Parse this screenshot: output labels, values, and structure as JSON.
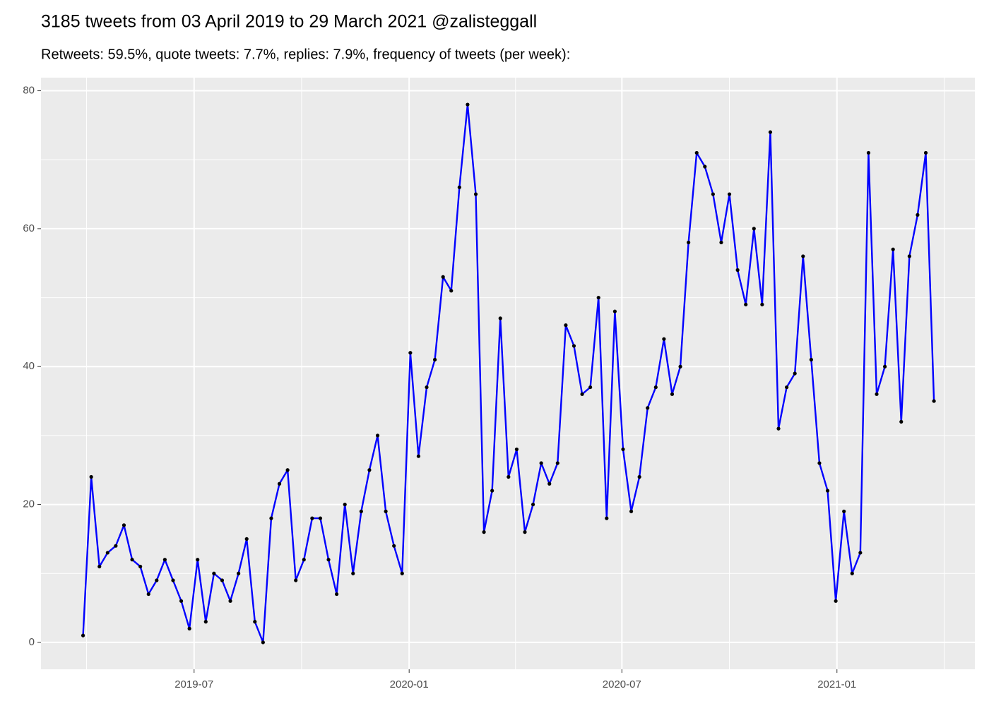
{
  "chart_data": {
    "type": "line",
    "title": "3185 tweets from 03 April 2019 to 29 March 2021 @zalisteggall",
    "subtitle": "Retweets: 59.5%, quote tweets: 7.7%, replies: 7.9%, frequency of tweets (per week):",
    "x": [
      "2019-03-28",
      "2019-04-04",
      "2019-04-11",
      "2019-04-18",
      "2019-04-25",
      "2019-05-02",
      "2019-05-09",
      "2019-05-16",
      "2019-05-23",
      "2019-05-30",
      "2019-06-06",
      "2019-06-13",
      "2019-06-20",
      "2019-06-27",
      "2019-07-04",
      "2019-07-11",
      "2019-07-18",
      "2019-07-25",
      "2019-08-01",
      "2019-08-08",
      "2019-08-15",
      "2019-08-22",
      "2019-08-29",
      "2019-09-05",
      "2019-09-12",
      "2019-09-19",
      "2019-09-26",
      "2019-10-03",
      "2019-10-10",
      "2019-10-17",
      "2019-10-24",
      "2019-10-31",
      "2019-11-07",
      "2019-11-14",
      "2019-11-21",
      "2019-11-28",
      "2019-12-05",
      "2019-12-12",
      "2019-12-19",
      "2019-12-26",
      "2020-01-02",
      "2020-01-09",
      "2020-01-16",
      "2020-01-23",
      "2020-01-30",
      "2020-02-06",
      "2020-02-13",
      "2020-02-20",
      "2020-02-27",
      "2020-03-05",
      "2020-03-12",
      "2020-03-19",
      "2020-03-26",
      "2020-04-02",
      "2020-04-09",
      "2020-04-16",
      "2020-04-23",
      "2020-04-30",
      "2020-05-07",
      "2020-05-14",
      "2020-05-21",
      "2020-05-28",
      "2020-06-04",
      "2020-06-11",
      "2020-06-18",
      "2020-06-25",
      "2020-07-02",
      "2020-07-09",
      "2020-07-16",
      "2020-07-23",
      "2020-07-30",
      "2020-08-06",
      "2020-08-13",
      "2020-08-20",
      "2020-08-27",
      "2020-09-03",
      "2020-09-10",
      "2020-09-17",
      "2020-09-24",
      "2020-10-01",
      "2020-10-08",
      "2020-10-15",
      "2020-10-22",
      "2020-10-29",
      "2020-11-05",
      "2020-11-12",
      "2020-11-19",
      "2020-11-26",
      "2020-12-03",
      "2020-12-10",
      "2020-12-17",
      "2020-12-24",
      "2020-12-31",
      "2021-01-07",
      "2021-01-14",
      "2021-01-21",
      "2021-01-28",
      "2021-02-04",
      "2021-02-11",
      "2021-02-18",
      "2021-02-25",
      "2021-03-04",
      "2021-03-11",
      "2021-03-18",
      "2021-03-25"
    ],
    "values": [
      1,
      24,
      11,
      13,
      14,
      17,
      12,
      11,
      7,
      9,
      12,
      9,
      6,
      2,
      12,
      3,
      10,
      9,
      6,
      10,
      15,
      3,
      0,
      18,
      23,
      25,
      9,
      12,
      18,
      18,
      12,
      7,
      20,
      10,
      19,
      25,
      30,
      19,
      14,
      10,
      42,
      27,
      37,
      41,
      53,
      51,
      66,
      78,
      65,
      16,
      22,
      47,
      24,
      28,
      16,
      20,
      26,
      23,
      26,
      46,
      43,
      36,
      37,
      50,
      18,
      48,
      28,
      19,
      24,
      34,
      37,
      44,
      36,
      40,
      58,
      71,
      69,
      65,
      58,
      65,
      54,
      49,
      60,
      49,
      74,
      31,
      37,
      39,
      56,
      41,
      26,
      22,
      6,
      19,
      10,
      13,
      71,
      36,
      40,
      57,
      32,
      56,
      62,
      71,
      35
    ],
    "color": "#0000ff",
    "marker_color": "#000000",
    "xlim": [
      "2019-02-20",
      "2021-04-29"
    ],
    "xticks": [
      {
        "value": "2019-07-01",
        "label": "2019-07"
      },
      {
        "value": "2020-01-01",
        "label": "2020-01"
      },
      {
        "value": "2020-07-01",
        "label": "2020-07"
      },
      {
        "value": "2021-01-01",
        "label": "2021-01"
      }
    ],
    "ylim": [
      -3.9,
      81.9
    ],
    "yticks": [
      0,
      20,
      40,
      60,
      80
    ],
    "grid": true
  }
}
